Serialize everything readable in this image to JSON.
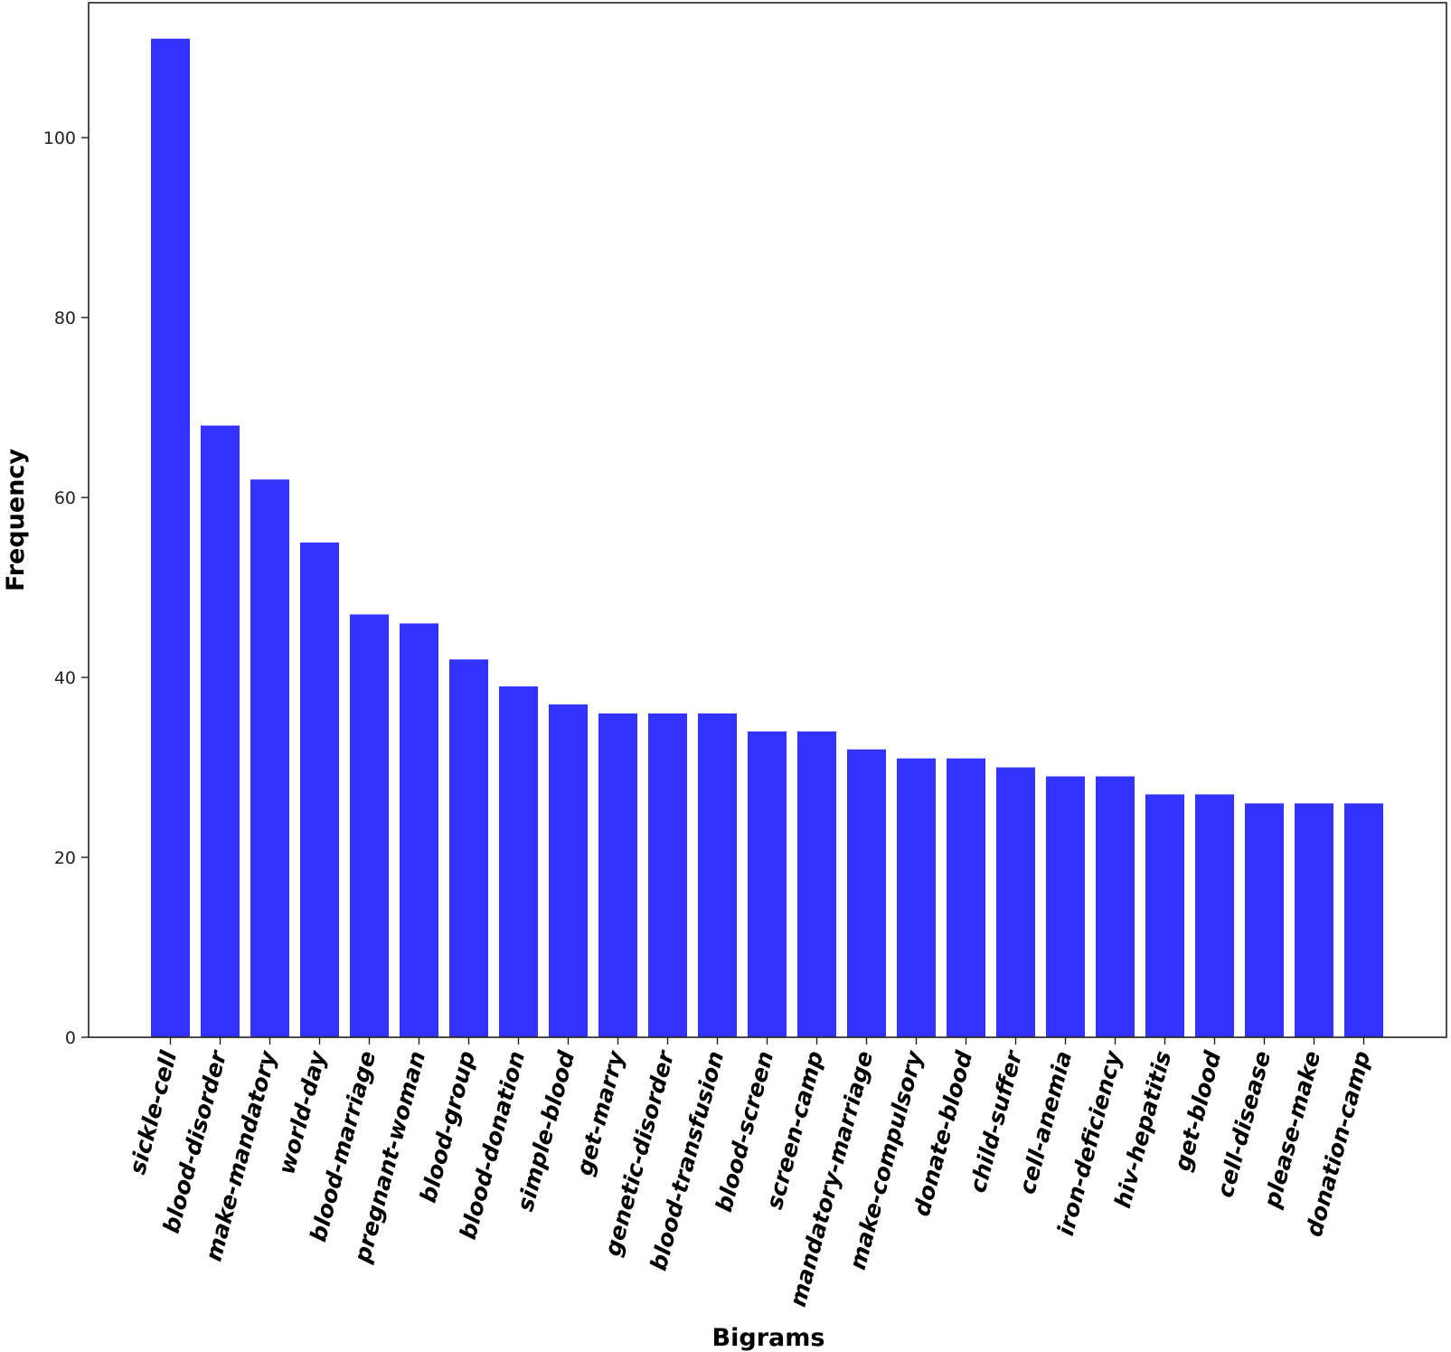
{
  "chart_data": {
    "type": "bar",
    "title": "",
    "xlabel": "Bigrams",
    "ylabel": "Frequency",
    "ylim": [
      0,
      115
    ],
    "yticks": [
      0,
      20,
      40,
      60,
      80,
      100
    ],
    "grid": false,
    "legend": "none",
    "bar_color": "#3333ff",
    "categories": [
      "sickle-cell",
      "blood-disorder",
      "make-mandatory",
      "world-day",
      "blood-marriage",
      "pregnant-woman",
      "blood-group",
      "blood-donation",
      "simple-blood",
      "get-marry",
      "genetic-disorder",
      "blood-transfusion",
      "blood-screen",
      "screen-camp",
      "mandatory-marriage",
      "make-compulsory",
      "donate-blood",
      "child-suffer",
      "cell-anemia",
      "iron-deficiency",
      "hiv-hepatitis",
      "get-blood",
      "cell-disease",
      "please-make",
      "donation-camp"
    ],
    "values": [
      111,
      68,
      62,
      55,
      47,
      46,
      42,
      39,
      37,
      36,
      36,
      36,
      34,
      34,
      32,
      31,
      31,
      30,
      29,
      29,
      27,
      27,
      26,
      26,
      26
    ]
  }
}
